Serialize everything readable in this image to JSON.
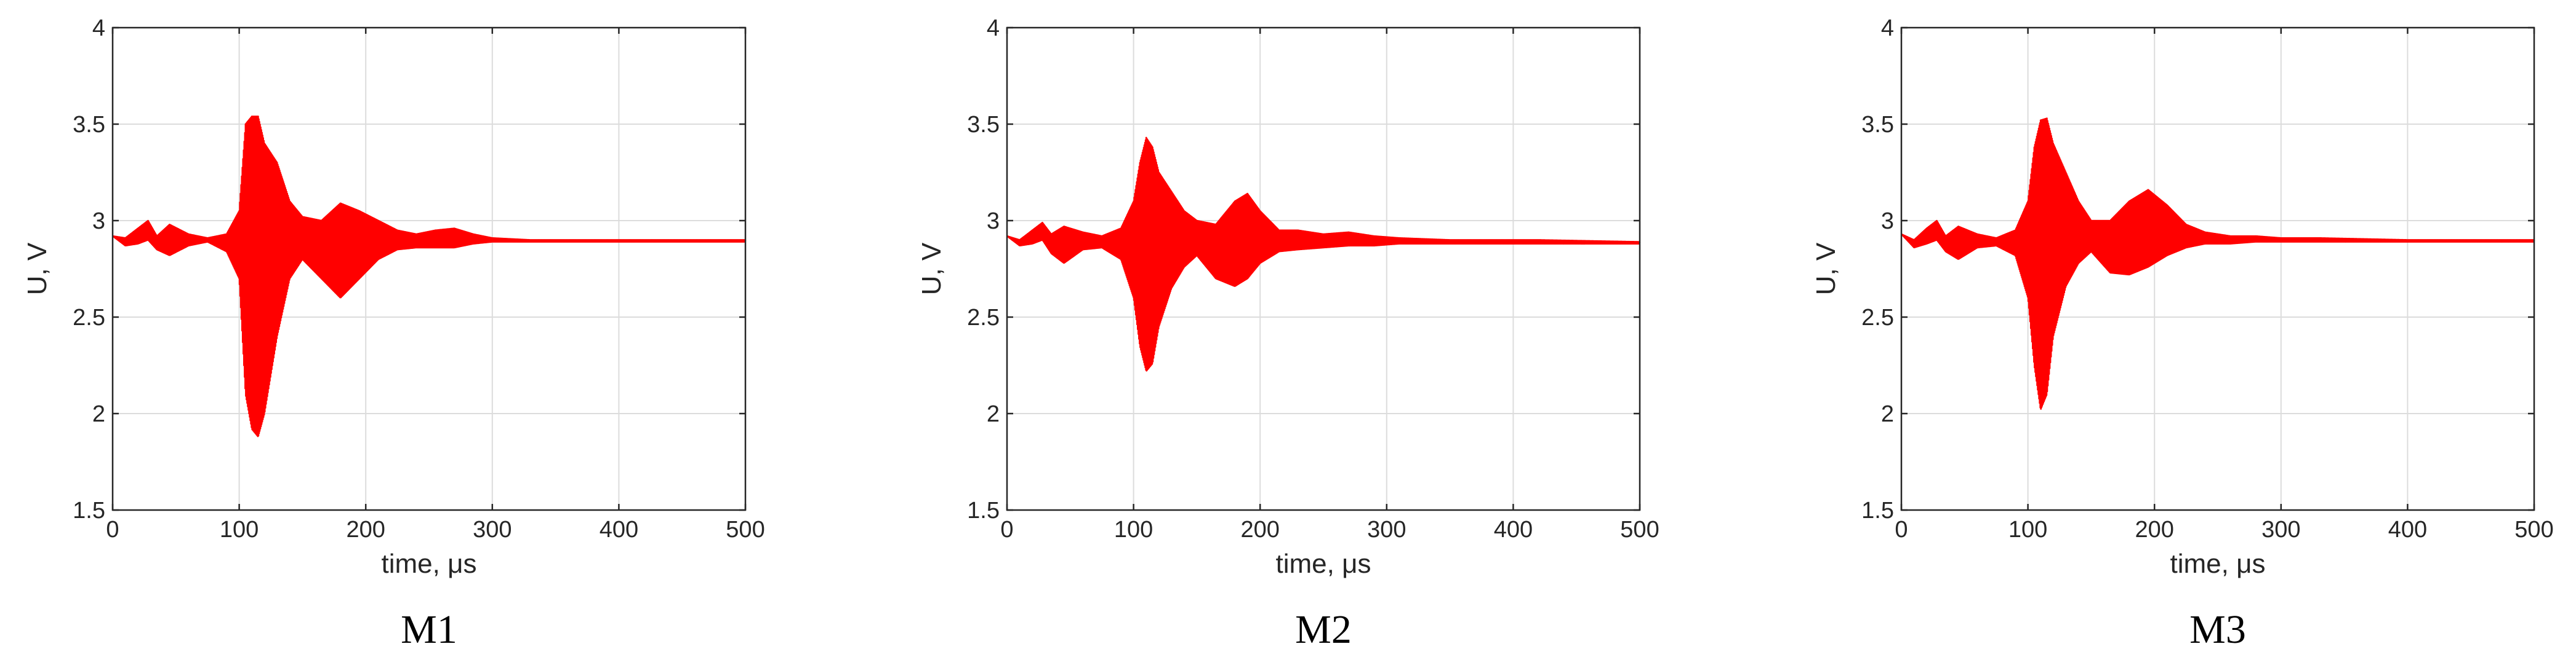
{
  "chart_data": [
    {
      "type": "line",
      "caption": "M1",
      "xlabel": "time, μs",
      "ylabel": "U, V",
      "xlim": [
        0,
        500
      ],
      "ylim": [
        1.5,
        4
      ],
      "xticks": [
        "0",
        "100",
        "200",
        "300",
        "400",
        "500"
      ],
      "yticks": [
        "1.5",
        "2",
        "2.5",
        "3",
        "3.5",
        "4"
      ],
      "grid": true,
      "series": [
        {
          "color": "#ff0000",
          "baseline": 2.9,
          "envelope": {
            "time": [
              0,
              10,
              20,
              28,
              35,
              45,
              60,
              75,
              90,
              100,
              105,
              110,
              115,
              120,
              130,
              140,
              150,
              165,
              180,
              195,
              210,
              225,
              240,
              255,
              270,
              285,
              300,
              330,
              400,
              500
            ],
            "upper": [
              2.92,
              2.91,
              2.96,
              3.0,
              2.92,
              2.98,
              2.93,
              2.91,
              2.93,
              3.05,
              3.5,
              3.54,
              3.54,
              3.4,
              3.3,
              3.1,
              3.02,
              3.0,
              3.09,
              3.05,
              3.0,
              2.95,
              2.93,
              2.95,
              2.96,
              2.93,
              2.91,
              2.9,
              2.9,
              2.9
            ],
            "lower": [
              2.92,
              2.87,
              2.88,
              2.9,
              2.85,
              2.82,
              2.87,
              2.89,
              2.84,
              2.7,
              2.1,
              1.92,
              1.88,
              2.0,
              2.4,
              2.7,
              2.8,
              2.7,
              2.6,
              2.7,
              2.8,
              2.85,
              2.86,
              2.86,
              2.86,
              2.88,
              2.89,
              2.89,
              2.89,
              2.89
            ]
          }
        }
      ]
    },
    {
      "type": "line",
      "caption": "M2",
      "xlabel": "time, μs",
      "ylabel": "U, V",
      "xlim": [
        0,
        500
      ],
      "ylim": [
        1.5,
        4
      ],
      "xticks": [
        "0",
        "100",
        "200",
        "300",
        "400",
        "500"
      ],
      "yticks": [
        "1.5",
        "2",
        "2.5",
        "3",
        "3.5",
        "4"
      ],
      "grid": true,
      "series": [
        {
          "color": "#ff0000",
          "baseline": 2.9,
          "envelope": {
            "time": [
              0,
              10,
              20,
              28,
              35,
              45,
              60,
              75,
              90,
              100,
              105,
              110,
              115,
              120,
              130,
              140,
              150,
              165,
              180,
              190,
              200,
              215,
              230,
              250,
              270,
              290,
              310,
              350,
              420,
              500
            ],
            "upper": [
              2.92,
              2.9,
              2.95,
              2.99,
              2.93,
              2.97,
              2.94,
              2.92,
              2.96,
              3.1,
              3.3,
              3.43,
              3.38,
              3.25,
              3.15,
              3.05,
              3.0,
              2.98,
              3.1,
              3.14,
              3.05,
              2.95,
              2.95,
              2.93,
              2.94,
              2.92,
              2.91,
              2.9,
              2.9,
              2.89
            ],
            "lower": [
              2.92,
              2.87,
              2.88,
              2.9,
              2.83,
              2.78,
              2.85,
              2.86,
              2.8,
              2.6,
              2.35,
              2.22,
              2.26,
              2.45,
              2.65,
              2.76,
              2.82,
              2.7,
              2.66,
              2.7,
              2.78,
              2.84,
              2.85,
              2.86,
              2.87,
              2.87,
              2.88,
              2.88,
              2.88,
              2.88
            ]
          }
        }
      ]
    },
    {
      "type": "line",
      "caption": "M3",
      "xlabel": "time, μs",
      "ylabel": "U, V",
      "xlim": [
        0,
        500
      ],
      "ylim": [
        1.5,
        4
      ],
      "xticks": [
        "0",
        "100",
        "200",
        "300",
        "400",
        "500"
      ],
      "yticks": [
        "1.5",
        "2",
        "2.5",
        "3",
        "3.5",
        "4"
      ],
      "grid": true,
      "series": [
        {
          "color": "#ff0000",
          "baseline": 2.9,
          "envelope": {
            "time": [
              0,
              10,
              20,
              28,
              35,
              45,
              60,
              75,
              90,
              100,
              105,
              110,
              115,
              120,
              130,
              140,
              150,
              165,
              180,
              195,
              210,
              225,
              240,
              260,
              280,
              300,
              330,
              400,
              500
            ],
            "upper": [
              2.93,
              2.9,
              2.96,
              3.0,
              2.92,
              2.97,
              2.93,
              2.91,
              2.95,
              3.1,
              3.38,
              3.52,
              3.53,
              3.4,
              3.25,
              3.1,
              3.0,
              3.0,
              3.1,
              3.16,
              3.08,
              2.98,
              2.94,
              2.92,
              2.92,
              2.91,
              2.91,
              2.9,
              2.9
            ],
            "lower": [
              2.93,
              2.86,
              2.88,
              2.9,
              2.84,
              2.8,
              2.86,
              2.87,
              2.82,
              2.6,
              2.25,
              2.02,
              2.1,
              2.4,
              2.66,
              2.78,
              2.84,
              2.73,
              2.72,
              2.76,
              2.82,
              2.86,
              2.88,
              2.88,
              2.89,
              2.89,
              2.89,
              2.89,
              2.89
            ]
          }
        }
      ]
    }
  ]
}
